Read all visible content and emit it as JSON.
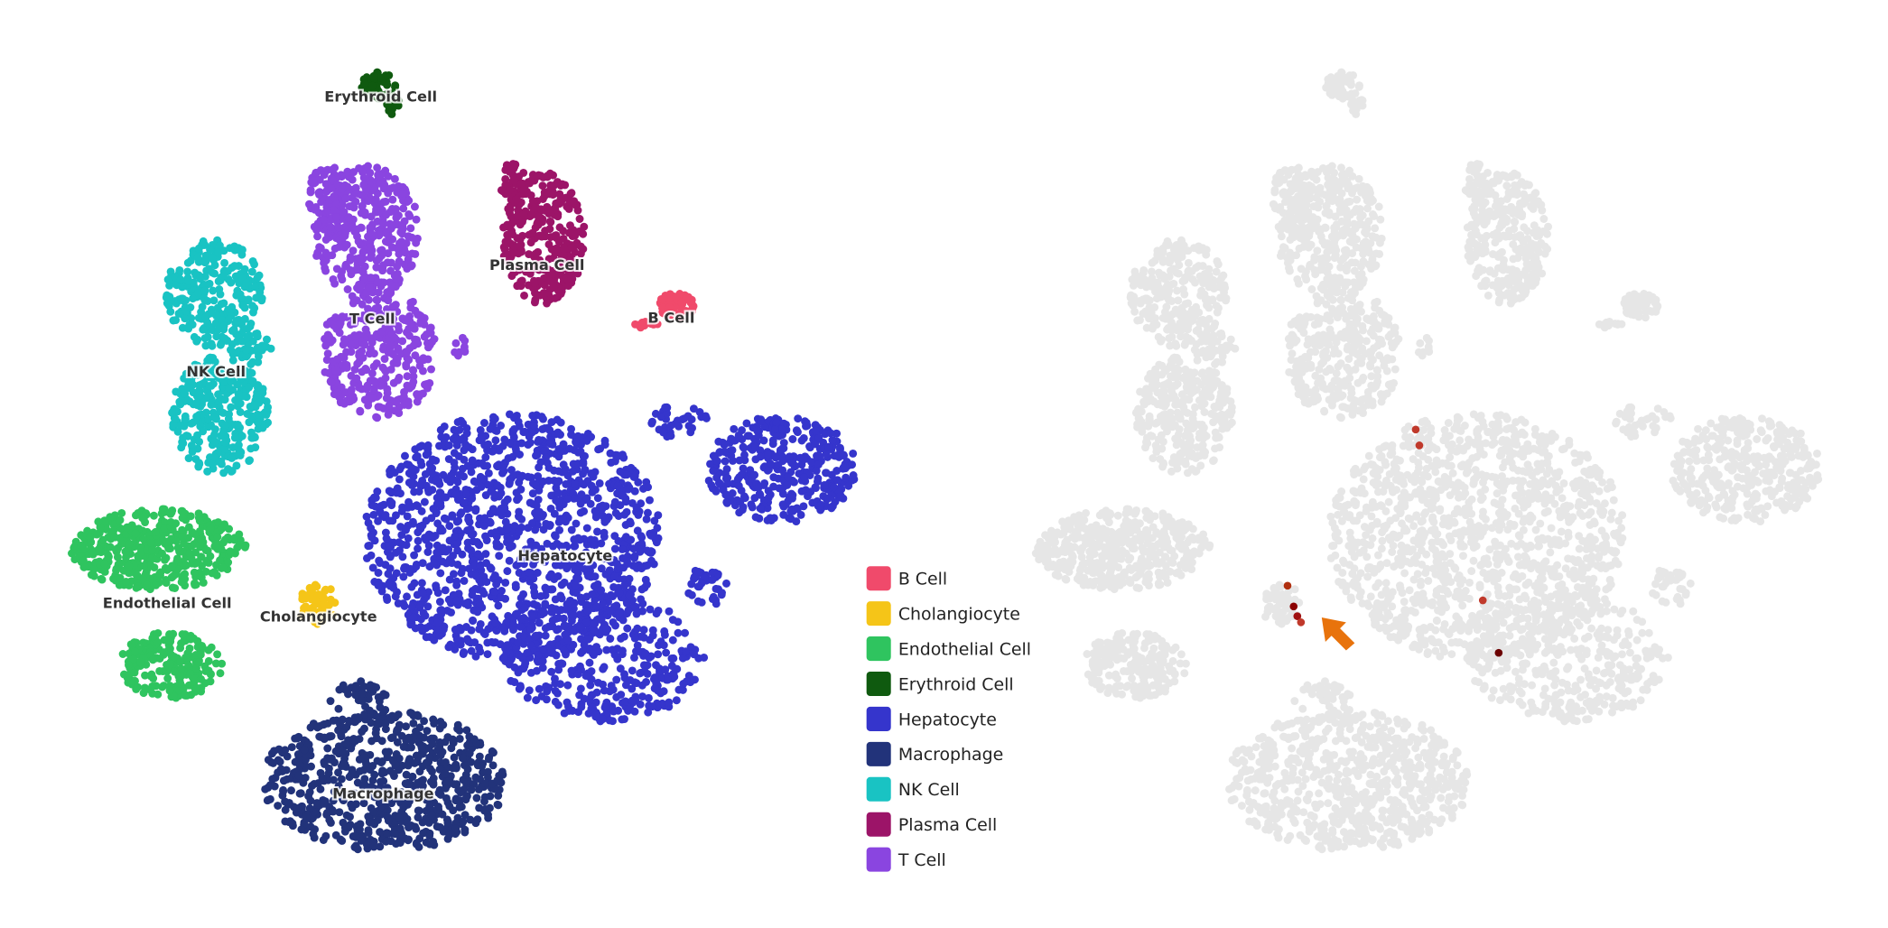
{
  "legend": [
    {
      "label": "B Cell",
      "color": "#f04a6b"
    },
    {
      "label": "Cholangiocyte",
      "color": "#f5c518"
    },
    {
      "label": "Endothelial Cell",
      "color": "#2fc45f"
    },
    {
      "label": "Erythroid Cell",
      "color": "#0f5a0f"
    },
    {
      "label": "Hepatocyte",
      "color": "#3535cc"
    },
    {
      "label": "Macrophage",
      "color": "#22337a"
    },
    {
      "label": "NK Cell",
      "color": "#19c3c3"
    },
    {
      "label": "Plasma Cell",
      "color": "#9c1468"
    },
    {
      "label": "T Cell",
      "color": "#8a45e0"
    }
  ],
  "cluster_labels": [
    "B Cell",
    "Cholangiocyte",
    "Endothelial Cell",
    "Erythroid Cell",
    "Hepatocyte",
    "Macrophage",
    "NK Cell",
    "Plasma Cell",
    "T Cell"
  ]
}
